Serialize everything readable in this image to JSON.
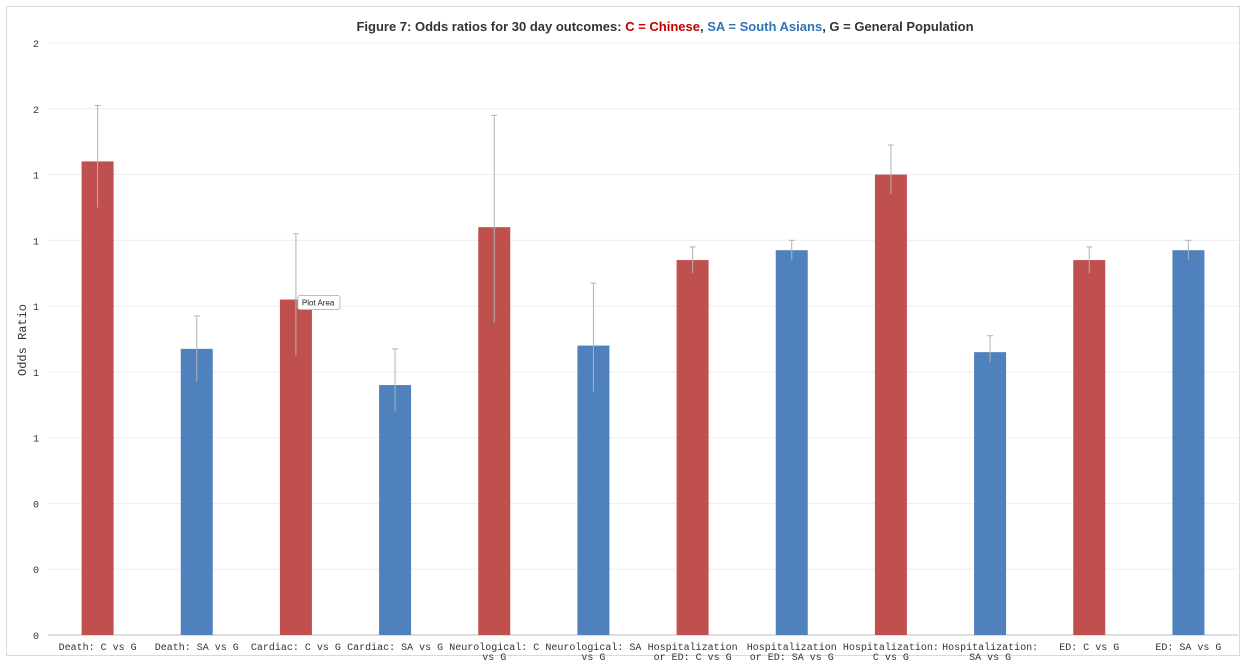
{
  "chart_data": {
    "type": "bar",
    "title_parts": [
      {
        "text": "Figure 7: Odds ratios for 30 day outcomes: ",
        "color": "#333333"
      },
      {
        "text": "C = Chinese",
        "color": "#c00000"
      },
      {
        "text": ", ",
        "color": "#333333"
      },
      {
        "text": "SA  = South Asians",
        "color": "#2e75b6"
      },
      {
        "text": ", G = General Population",
        "color": "#333333"
      }
    ],
    "ylabel": "Odds Ratio",
    "ylim": [
      0,
      1.8
    ],
    "y_tick_values": [
      0,
      0.2,
      0.4,
      0.6,
      0.8,
      1.0,
      1.2,
      1.4,
      1.6,
      1.8
    ],
    "y_tick_labels": [
      "0",
      "0",
      "0",
      "1",
      "1",
      "1",
      "1",
      "1",
      "2",
      "2"
    ],
    "grid": true,
    "categories": [
      [
        "Death: C vs G"
      ],
      [
        "Death: SA vs G"
      ],
      [
        "Cardiac: C vs G"
      ],
      [
        "Cardiac: SA vs G"
      ],
      [
        "Neurological: C",
        "vs G"
      ],
      [
        "Neurological: SA",
        "vs G"
      ],
      [
        "Hospitalization",
        "or ED: C vs G"
      ],
      [
        "Hospitalization",
        "or ED: SA vs G"
      ],
      [
        "Hospitalization:",
        "C vs G"
      ],
      [
        "Hospitalization:",
        "SA vs G"
      ],
      [
        "ED: C vs G"
      ],
      [
        "ED: SA vs G"
      ]
    ],
    "values": [
      1.44,
      0.87,
      1.02,
      0.76,
      1.24,
      0.88,
      1.14,
      1.17,
      1.4,
      0.86,
      1.14,
      1.17
    ],
    "error_upper": [
      1.61,
      0.97,
      1.22,
      0.87,
      1.58,
      1.07,
      1.18,
      1.2,
      1.49,
      0.91,
      1.18,
      1.2
    ],
    "error_lower": [
      1.3,
      0.77,
      0.85,
      0.68,
      0.95,
      0.74,
      1.1,
      1.14,
      1.34,
      0.83,
      1.1,
      1.14
    ],
    "bar_colors": [
      "#c0504d",
      "#4f81bd",
      "#c0504d",
      "#4f81bd",
      "#c0504d",
      "#4f81bd",
      "#c0504d",
      "#4f81bd",
      "#c0504d",
      "#4f81bd",
      "#c0504d",
      "#4f81bd"
    ],
    "tooltip": {
      "text": "Plot Area",
      "anchor_category_index": 2
    }
  }
}
